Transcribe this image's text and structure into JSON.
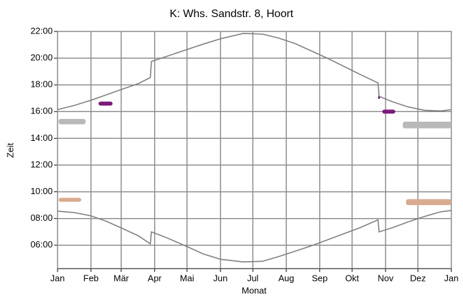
{
  "chart_data": {
    "type": "line",
    "title": "K: Whs. Sandstr. 8, Hoort",
    "xlabel": "Monat",
    "ylabel": "Zeit",
    "xlim": [
      0,
      365
    ],
    "xticks": [
      {
        "value": 0,
        "label": "Jan"
      },
      {
        "value": 31,
        "label": "Feb"
      },
      {
        "value": 59,
        "label": "Mär"
      },
      {
        "value": 90,
        "label": "Apr"
      },
      {
        "value": 120,
        "label": "Mai"
      },
      {
        "value": 151,
        "label": "Jun"
      },
      {
        "value": 181,
        "label": "Jul"
      },
      {
        "value": 212,
        "label": "Aug"
      },
      {
        "value": 243,
        "label": "Sep"
      },
      {
        "value": 273,
        "label": "Okt"
      },
      {
        "value": 304,
        "label": "Nov"
      },
      {
        "value": 334,
        "label": "Dez"
      },
      {
        "value": 365,
        "label": "Jan"
      }
    ],
    "ylim": [
      4.25,
      22
    ],
    "yticks": [
      {
        "value": 6,
        "label": "06:00"
      },
      {
        "value": 8,
        "label": "08:00"
      },
      {
        "value": 10,
        "label": "10:00"
      },
      {
        "value": 12,
        "label": "12:00"
      },
      {
        "value": 14,
        "label": "14:00"
      },
      {
        "value": 16,
        "label": "16:00"
      },
      {
        "value": 18,
        "label": "18:00"
      },
      {
        "value": 20,
        "label": "20:00"
      },
      {
        "value": 22,
        "label": "22:00"
      }
    ],
    "grid": true,
    "grid_color": "#8c8c8c",
    "series": [
      {
        "color": "#7f7f7f",
        "x": [
          0,
          15,
          31,
          45,
          59,
          75,
          86,
          87,
          100,
          120,
          135,
          151,
          172,
          190,
          205,
          220,
          235,
          250,
          265,
          280,
          297,
          298,
          310,
          325,
          340,
          355,
          365
        ],
        "values": [
          16.15,
          16.45,
          16.85,
          17.25,
          17.65,
          18.1,
          18.55,
          19.75,
          20.1,
          20.65,
          21.05,
          21.45,
          21.85,
          21.8,
          21.5,
          21.1,
          20.55,
          20.0,
          19.4,
          18.8,
          18.15,
          17.15,
          16.75,
          16.35,
          16.1,
          16.05,
          16.15
        ]
      },
      {
        "color": "#7f7f7f",
        "x": [
          0,
          15,
          31,
          45,
          59,
          75,
          86,
          87,
          100,
          120,
          135,
          151,
          172,
          190,
          205,
          220,
          235,
          250,
          265,
          280,
          297,
          298,
          310,
          325,
          340,
          355,
          365
        ],
        "values": [
          8.55,
          8.45,
          8.2,
          7.8,
          7.3,
          6.7,
          6.1,
          7.0,
          6.6,
          5.9,
          5.35,
          4.95,
          4.75,
          4.8,
          5.15,
          5.55,
          5.95,
          6.4,
          6.85,
          7.3,
          7.9,
          7.0,
          7.3,
          7.75,
          8.15,
          8.5,
          8.6
        ]
      }
    ],
    "shadows": [
      {
        "color": "#b9b9b9",
        "x": [
          1,
          26
        ],
        "y": [
          15.05,
          15.45
        ]
      },
      {
        "color": "#d8ab90",
        "x": [
          1,
          22
        ],
        "y": [
          9.25,
          9.55
        ]
      },
      {
        "color": "#7b1b7b",
        "x": [
          38,
          51
        ],
        "y": [
          16.45,
          16.75
        ]
      },
      {
        "color": "#7b1b7b",
        "x": [
          297,
          299
        ],
        "y": [
          16.95,
          17.2
        ]
      },
      {
        "color": "#7b1b7b",
        "x": [
          301,
          313
        ],
        "y": [
          15.85,
          16.15
        ]
      },
      {
        "color": "#b9b9b9",
        "x": [
          320,
          365
        ],
        "y": [
          14.75,
          15.25
        ]
      },
      {
        "color": "#d8ab90",
        "x": [
          323,
          365
        ],
        "y": [
          9.0,
          9.45
        ]
      }
    ]
  }
}
